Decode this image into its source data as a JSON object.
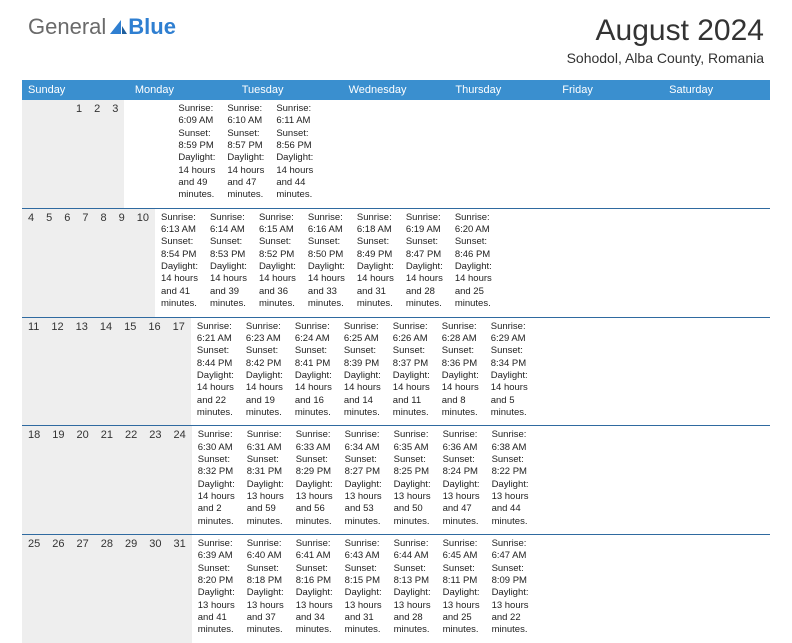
{
  "brand": {
    "part1": "General",
    "part2": "Blue"
  },
  "title": "August 2024",
  "location": "Sohodol, Alba County, Romania",
  "colors": {
    "header_bg": "#3a8fcf",
    "row_divider": "#2f6aa0",
    "daynum_bg": "#eeeeee",
    "text": "#222222",
    "brand_gray": "#6a6a6a",
    "brand_blue": "#2f7fd1"
  },
  "fonts": {
    "title_pt": 30,
    "location_pt": 14,
    "dow_pt": 11,
    "body_pt": 9.5
  },
  "days_of_week": [
    "Sunday",
    "Monday",
    "Tuesday",
    "Wednesday",
    "Thursday",
    "Friday",
    "Saturday"
  ],
  "weeks": [
    [
      {
        "n": "",
        "sunrise": "",
        "sunset": "",
        "daylight": ""
      },
      {
        "n": "",
        "sunrise": "",
        "sunset": "",
        "daylight": ""
      },
      {
        "n": "",
        "sunrise": "",
        "sunset": "",
        "daylight": ""
      },
      {
        "n": "",
        "sunrise": "",
        "sunset": "",
        "daylight": ""
      },
      {
        "n": "1",
        "sunrise": "Sunrise: 6:09 AM",
        "sunset": "Sunset: 8:59 PM",
        "daylight": "Daylight: 14 hours and 49 minutes."
      },
      {
        "n": "2",
        "sunrise": "Sunrise: 6:10 AM",
        "sunset": "Sunset: 8:57 PM",
        "daylight": "Daylight: 14 hours and 47 minutes."
      },
      {
        "n": "3",
        "sunrise": "Sunrise: 6:11 AM",
        "sunset": "Sunset: 8:56 PM",
        "daylight": "Daylight: 14 hours and 44 minutes."
      }
    ],
    [
      {
        "n": "4",
        "sunrise": "Sunrise: 6:13 AM",
        "sunset": "Sunset: 8:54 PM",
        "daylight": "Daylight: 14 hours and 41 minutes."
      },
      {
        "n": "5",
        "sunrise": "Sunrise: 6:14 AM",
        "sunset": "Sunset: 8:53 PM",
        "daylight": "Daylight: 14 hours and 39 minutes."
      },
      {
        "n": "6",
        "sunrise": "Sunrise: 6:15 AM",
        "sunset": "Sunset: 8:52 PM",
        "daylight": "Daylight: 14 hours and 36 minutes."
      },
      {
        "n": "7",
        "sunrise": "Sunrise: 6:16 AM",
        "sunset": "Sunset: 8:50 PM",
        "daylight": "Daylight: 14 hours and 33 minutes."
      },
      {
        "n": "8",
        "sunrise": "Sunrise: 6:18 AM",
        "sunset": "Sunset: 8:49 PM",
        "daylight": "Daylight: 14 hours and 31 minutes."
      },
      {
        "n": "9",
        "sunrise": "Sunrise: 6:19 AM",
        "sunset": "Sunset: 8:47 PM",
        "daylight": "Daylight: 14 hours and 28 minutes."
      },
      {
        "n": "10",
        "sunrise": "Sunrise: 6:20 AM",
        "sunset": "Sunset: 8:46 PM",
        "daylight": "Daylight: 14 hours and 25 minutes."
      }
    ],
    [
      {
        "n": "11",
        "sunrise": "Sunrise: 6:21 AM",
        "sunset": "Sunset: 8:44 PM",
        "daylight": "Daylight: 14 hours and 22 minutes."
      },
      {
        "n": "12",
        "sunrise": "Sunrise: 6:23 AM",
        "sunset": "Sunset: 8:42 PM",
        "daylight": "Daylight: 14 hours and 19 minutes."
      },
      {
        "n": "13",
        "sunrise": "Sunrise: 6:24 AM",
        "sunset": "Sunset: 8:41 PM",
        "daylight": "Daylight: 14 hours and 16 minutes."
      },
      {
        "n": "14",
        "sunrise": "Sunrise: 6:25 AM",
        "sunset": "Sunset: 8:39 PM",
        "daylight": "Daylight: 14 hours and 14 minutes."
      },
      {
        "n": "15",
        "sunrise": "Sunrise: 6:26 AM",
        "sunset": "Sunset: 8:37 PM",
        "daylight": "Daylight: 14 hours and 11 minutes."
      },
      {
        "n": "16",
        "sunrise": "Sunrise: 6:28 AM",
        "sunset": "Sunset: 8:36 PM",
        "daylight": "Daylight: 14 hours and 8 minutes."
      },
      {
        "n": "17",
        "sunrise": "Sunrise: 6:29 AM",
        "sunset": "Sunset: 8:34 PM",
        "daylight": "Daylight: 14 hours and 5 minutes."
      }
    ],
    [
      {
        "n": "18",
        "sunrise": "Sunrise: 6:30 AM",
        "sunset": "Sunset: 8:32 PM",
        "daylight": "Daylight: 14 hours and 2 minutes."
      },
      {
        "n": "19",
        "sunrise": "Sunrise: 6:31 AM",
        "sunset": "Sunset: 8:31 PM",
        "daylight": "Daylight: 13 hours and 59 minutes."
      },
      {
        "n": "20",
        "sunrise": "Sunrise: 6:33 AM",
        "sunset": "Sunset: 8:29 PM",
        "daylight": "Daylight: 13 hours and 56 minutes."
      },
      {
        "n": "21",
        "sunrise": "Sunrise: 6:34 AM",
        "sunset": "Sunset: 8:27 PM",
        "daylight": "Daylight: 13 hours and 53 minutes."
      },
      {
        "n": "22",
        "sunrise": "Sunrise: 6:35 AM",
        "sunset": "Sunset: 8:25 PM",
        "daylight": "Daylight: 13 hours and 50 minutes."
      },
      {
        "n": "23",
        "sunrise": "Sunrise: 6:36 AM",
        "sunset": "Sunset: 8:24 PM",
        "daylight": "Daylight: 13 hours and 47 minutes."
      },
      {
        "n": "24",
        "sunrise": "Sunrise: 6:38 AM",
        "sunset": "Sunset: 8:22 PM",
        "daylight": "Daylight: 13 hours and 44 minutes."
      }
    ],
    [
      {
        "n": "25",
        "sunrise": "Sunrise: 6:39 AM",
        "sunset": "Sunset: 8:20 PM",
        "daylight": "Daylight: 13 hours and 41 minutes."
      },
      {
        "n": "26",
        "sunrise": "Sunrise: 6:40 AM",
        "sunset": "Sunset: 8:18 PM",
        "daylight": "Daylight: 13 hours and 37 minutes."
      },
      {
        "n": "27",
        "sunrise": "Sunrise: 6:41 AM",
        "sunset": "Sunset: 8:16 PM",
        "daylight": "Daylight: 13 hours and 34 minutes."
      },
      {
        "n": "28",
        "sunrise": "Sunrise: 6:43 AM",
        "sunset": "Sunset: 8:15 PM",
        "daylight": "Daylight: 13 hours and 31 minutes."
      },
      {
        "n": "29",
        "sunrise": "Sunrise: 6:44 AM",
        "sunset": "Sunset: 8:13 PM",
        "daylight": "Daylight: 13 hours and 28 minutes."
      },
      {
        "n": "30",
        "sunrise": "Sunrise: 6:45 AM",
        "sunset": "Sunset: 8:11 PM",
        "daylight": "Daylight: 13 hours and 25 minutes."
      },
      {
        "n": "31",
        "sunrise": "Sunrise: 6:47 AM",
        "sunset": "Sunset: 8:09 PM",
        "daylight": "Daylight: 13 hours and 22 minutes."
      }
    ]
  ]
}
